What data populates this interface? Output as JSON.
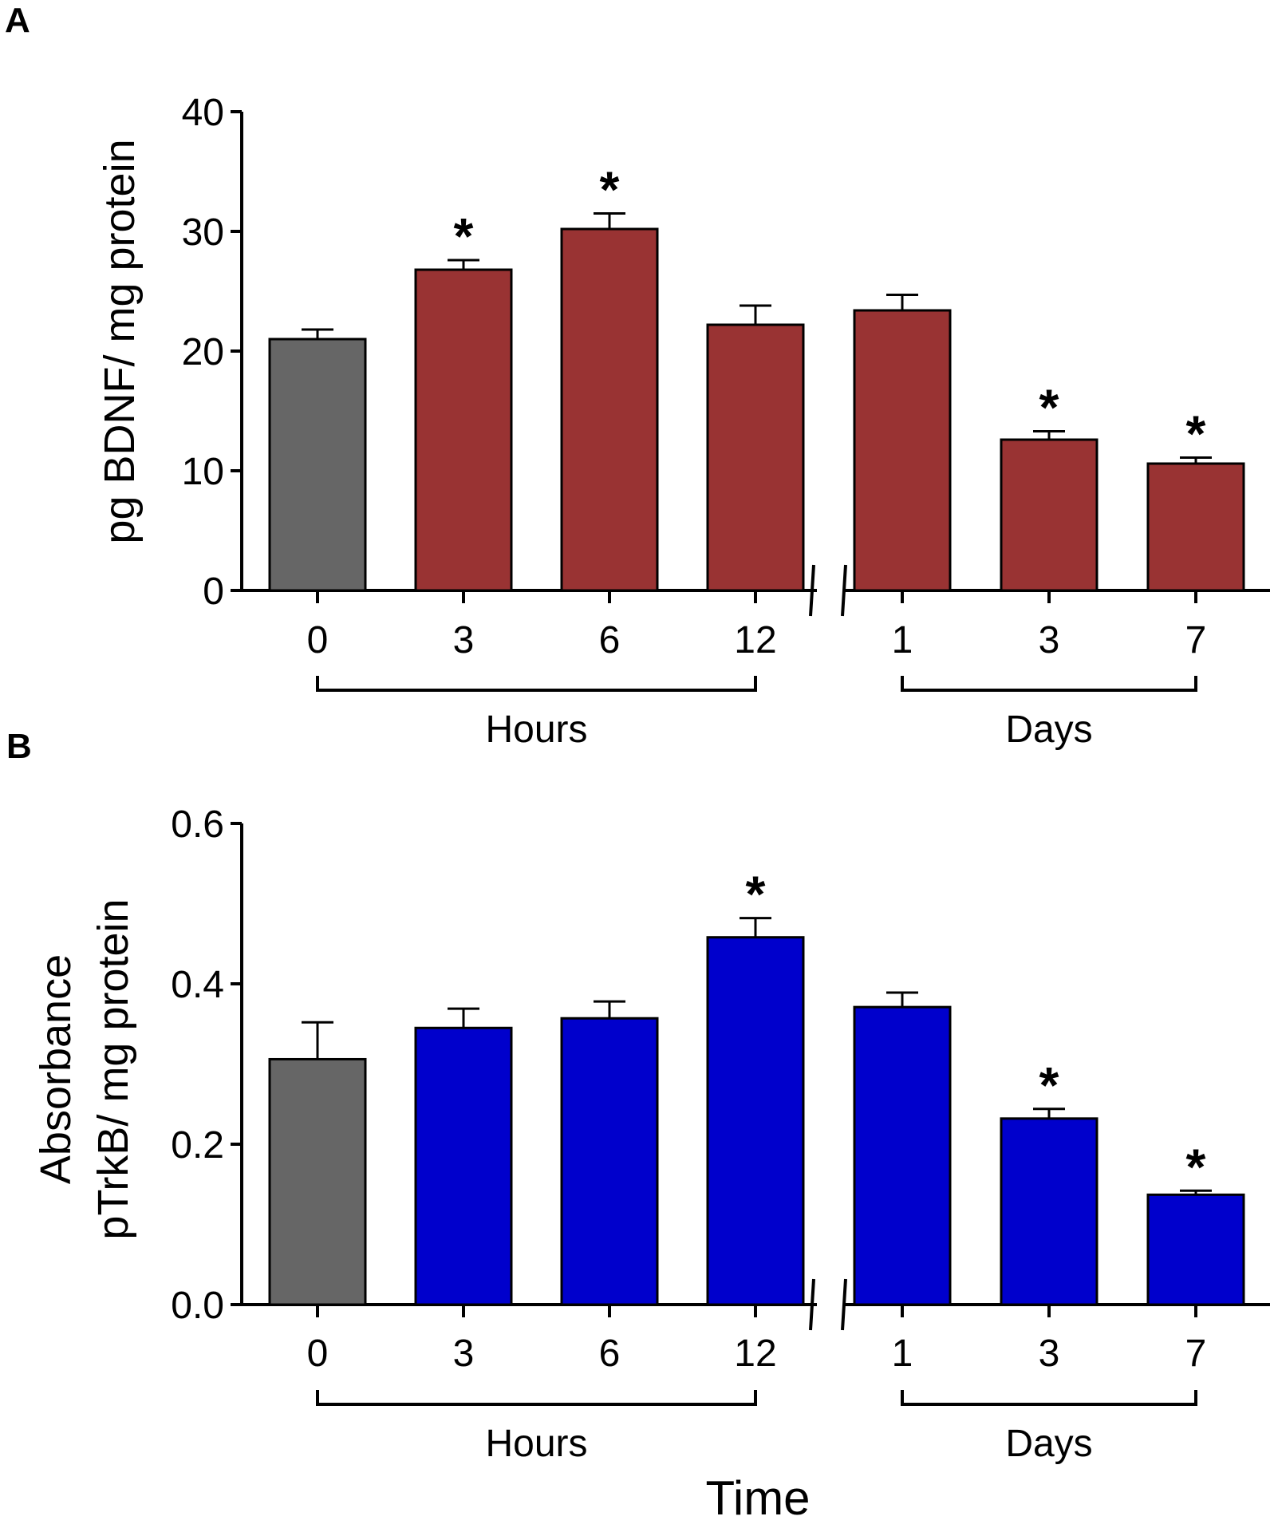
{
  "figure": {
    "xlabel": "Time"
  },
  "chart_data": [
    {
      "type": "bar",
      "panel": "A",
      "ylabel": "pg BDNF/ mg protein",
      "ylim": [
        0,
        40
      ],
      "yticks": [
        "0",
        "10",
        "20",
        "30",
        "40"
      ],
      "ytick_values": [
        0,
        10,
        20,
        30,
        40
      ],
      "categories": [
        "0",
        "3",
        "6",
        "12",
        "1",
        "3",
        "7"
      ],
      "values": [
        21.0,
        26.8,
        30.2,
        22.2,
        23.4,
        12.6,
        10.6
      ],
      "errors": [
        0.8,
        0.8,
        1.3,
        1.6,
        1.3,
        0.7,
        0.5
      ],
      "significant": [
        false,
        true,
        true,
        false,
        false,
        true,
        true
      ],
      "significance_marker": "*",
      "colors": [
        "#666666",
        "#993333",
        "#993333",
        "#993333",
        "#993333",
        "#993333",
        "#993333"
      ],
      "groups": [
        {
          "label": "Hours",
          "from": 0,
          "to": 3
        },
        {
          "label": "Days",
          "from": 4,
          "to": 6
        }
      ],
      "axis_break_after": 3
    },
    {
      "type": "bar",
      "panel": "B",
      "ylabel": "Absorbance pTrkB/ mg protein",
      "ylabel_lines": [
        "Absorbance",
        "pTrkB/ mg protein"
      ],
      "ylim": [
        0,
        0.6
      ],
      "yticks": [
        "0.0",
        "0.2",
        "0.4",
        "0.6"
      ],
      "ytick_values": [
        0,
        0.2,
        0.4,
        0.6
      ],
      "categories": [
        "0",
        "3",
        "6",
        "12",
        "1",
        "3",
        "7"
      ],
      "values": [
        0.306,
        0.345,
        0.357,
        0.458,
        0.371,
        0.232,
        0.137
      ],
      "errors": [
        0.046,
        0.024,
        0.021,
        0.024,
        0.018,
        0.012,
        0.005
      ],
      "significant": [
        false,
        false,
        false,
        true,
        false,
        true,
        true
      ],
      "significance_marker": "*",
      "colors": [
        "#666666",
        "#0000cc",
        "#0000cc",
        "#0000cc",
        "#0000cc",
        "#0000cc",
        "#0000cc"
      ],
      "groups": [
        {
          "label": "Hours",
          "from": 0,
          "to": 3
        },
        {
          "label": "Days",
          "from": 4,
          "to": 6
        }
      ],
      "axis_break_after": 3
    }
  ]
}
